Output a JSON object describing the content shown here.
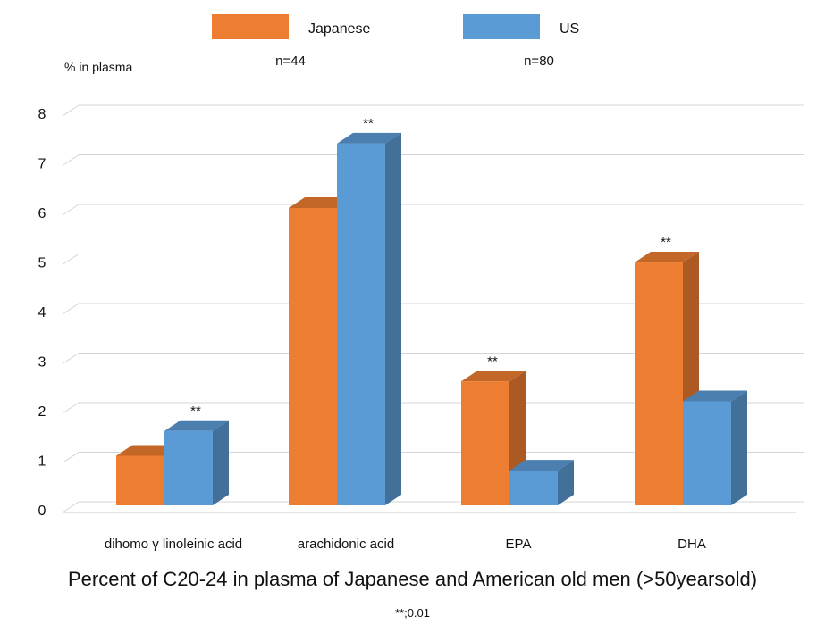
{
  "chart_data": {
    "type": "bar",
    "style": "3d-column",
    "ylabel": "% in plasma",
    "ylim": [
      0,
      8
    ],
    "yticks": [
      "0",
      "1",
      "2",
      "3",
      "4",
      "5",
      "6",
      "7",
      "8"
    ],
    "grid": true,
    "legend_position": "top",
    "categories": [
      "dihomo γ linoleinic acid",
      "arachidonic acid",
      "EPA",
      "DHA"
    ],
    "series": [
      {
        "name": "Japanese",
        "n_label": "n=44",
        "color": "#ED7D31",
        "values": [
          1.0,
          6.0,
          2.5,
          4.9
        ]
      },
      {
        "name": "US",
        "n_label": "n=80",
        "color": "#5B9BD5",
        "values": [
          1.5,
          7.3,
          0.7,
          2.1
        ]
      }
    ],
    "annotations": [
      "**",
      "**",
      "**",
      "**"
    ]
  },
  "caption": {
    "main": "Percent of C20-24 in plasma of Japanese and American old men (>50yearsold)",
    "significance": "**;0.01"
  }
}
